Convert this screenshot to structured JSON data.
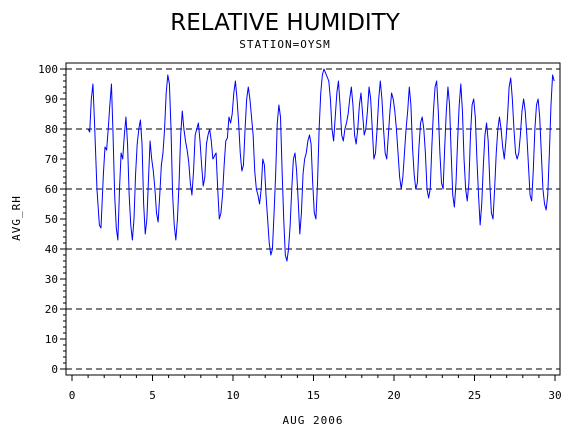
{
  "chart_data": {
    "type": "line",
    "title": "RELATIVE HUMIDITY",
    "subtitle": "STATION=OYSM",
    "xlabel": "AUG 2006",
    "ylabel": "AVG_RH",
    "xlim": [
      0,
      30
    ],
    "ylim": [
      0,
      100
    ],
    "xticks": [
      0,
      5,
      10,
      15,
      20,
      25,
      30
    ],
    "yticks": [
      0,
      10,
      20,
      30,
      40,
      50,
      60,
      70,
      80,
      90,
      100
    ],
    "reference_lines": [
      0,
      20,
      40,
      60,
      80,
      100
    ],
    "line_color": "#0000ff",
    "series": [
      {
        "values": [
          [
            1.0,
            80
          ],
          [
            1.1,
            79
          ],
          [
            1.2,
            90
          ],
          [
            1.3,
            95
          ],
          [
            1.4,
            82
          ],
          [
            1.55,
            60
          ],
          [
            1.7,
            48
          ],
          [
            1.8,
            47
          ],
          [
            1.95,
            65
          ],
          [
            2.05,
            74
          ],
          [
            2.15,
            73
          ],
          [
            2.25,
            80
          ],
          [
            2.35,
            88
          ],
          [
            2.45,
            95
          ],
          [
            2.55,
            78
          ],
          [
            2.65,
            58
          ],
          [
            2.75,
            47
          ],
          [
            2.85,
            43
          ],
          [
            2.95,
            60
          ],
          [
            3.05,
            72
          ],
          [
            3.15,
            70
          ],
          [
            3.25,
            78
          ],
          [
            3.35,
            84
          ],
          [
            3.45,
            75
          ],
          [
            3.55,
            58
          ],
          [
            3.65,
            48
          ],
          [
            3.75,
            43
          ],
          [
            3.85,
            50
          ],
          [
            3.95,
            65
          ],
          [
            4.05,
            75
          ],
          [
            4.15,
            80
          ],
          [
            4.25,
            83
          ],
          [
            4.35,
            75
          ],
          [
            4.45,
            55
          ],
          [
            4.55,
            45
          ],
          [
            4.65,
            50
          ],
          [
            4.75,
            63
          ],
          [
            4.85,
            76
          ],
          [
            4.95,
            70
          ],
          [
            5.05,
            66
          ],
          [
            5.15,
            60
          ],
          [
            5.25,
            52
          ],
          [
            5.35,
            49
          ],
          [
            5.45,
            58
          ],
          [
            5.55,
            68
          ],
          [
            5.65,
            72
          ],
          [
            5.75,
            80
          ],
          [
            5.85,
            92
          ],
          [
            5.95,
            98
          ],
          [
            6.05,
            95
          ],
          [
            6.15,
            80
          ],
          [
            6.25,
            58
          ],
          [
            6.35,
            48
          ],
          [
            6.45,
            43
          ],
          [
            6.55,
            50
          ],
          [
            6.65,
            62
          ],
          [
            6.75,
            78
          ],
          [
            6.85,
            86
          ],
          [
            6.95,
            80
          ],
          [
            7.05,
            76
          ],
          [
            7.15,
            73
          ],
          [
            7.25,
            69
          ],
          [
            7.35,
            62
          ],
          [
            7.45,
            58
          ],
          [
            7.55,
            66
          ],
          [
            7.65,
            78
          ],
          [
            7.75,
            80
          ],
          [
            7.85,
            82
          ],
          [
            7.95,
            76
          ],
          [
            8.05,
            68
          ],
          [
            8.15,
            61
          ],
          [
            8.25,
            64
          ],
          [
            8.35,
            75
          ],
          [
            8.45,
            78
          ],
          [
            8.55,
            80
          ],
          [
            8.65,
            76
          ],
          [
            8.75,
            70
          ],
          [
            8.95,
            72
          ],
          [
            9.05,
            60
          ],
          [
            9.15,
            50
          ],
          [
            9.25,
            52
          ],
          [
            9.35,
            58
          ],
          [
            9.45,
            68
          ],
          [
            9.55,
            76
          ],
          [
            9.65,
            77
          ],
          [
            9.75,
            84
          ],
          [
            9.85,
            82
          ],
          [
            9.95,
            85
          ],
          [
            10.05,
            92
          ],
          [
            10.15,
            96
          ],
          [
            10.25,
            90
          ],
          [
            10.35,
            82
          ],
          [
            10.45,
            72
          ],
          [
            10.55,
            66
          ],
          [
            10.65,
            68
          ],
          [
            10.75,
            80
          ],
          [
            10.85,
            90
          ],
          [
            10.95,
            94
          ],
          [
            11.05,
            90
          ],
          [
            11.15,
            84
          ],
          [
            11.25,
            78
          ],
          [
            11.35,
            66
          ],
          [
            11.45,
            60
          ],
          [
            11.55,
            58
          ],
          [
            11.65,
            55
          ],
          [
            11.75,
            60
          ],
          [
            11.85,
            70
          ],
          [
            11.95,
            68
          ],
          [
            12.05,
            58
          ],
          [
            12.15,
            50
          ],
          [
            12.25,
            42
          ],
          [
            12.35,
            38
          ],
          [
            12.45,
            40
          ],
          [
            12.55,
            52
          ],
          [
            12.65,
            65
          ],
          [
            12.75,
            82
          ],
          [
            12.85,
            88
          ],
          [
            12.95,
            84
          ],
          [
            13.05,
            66
          ],
          [
            13.15,
            50
          ],
          [
            13.25,
            38
          ],
          [
            13.35,
            36
          ],
          [
            13.45,
            40
          ],
          [
            13.55,
            48
          ],
          [
            13.65,
            60
          ],
          [
            13.75,
            70
          ],
          [
            13.85,
            72
          ],
          [
            13.95,
            66
          ],
          [
            14.05,
            56
          ],
          [
            14.15,
            45
          ],
          [
            14.25,
            52
          ],
          [
            14.35,
            65
          ],
          [
            14.45,
            70
          ],
          [
            14.55,
            72
          ],
          [
            14.65,
            76
          ],
          [
            14.75,
            78
          ],
          [
            14.85,
            75
          ],
          [
            14.95,
            62
          ],
          [
            15.05,
            52
          ],
          [
            15.15,
            50
          ],
          [
            15.25,
            62
          ],
          [
            15.35,
            80
          ],
          [
            15.45,
            92
          ],
          [
            15.55,
            98
          ],
          [
            15.65,
            100
          ],
          [
            15.8,
            98
          ],
          [
            15.95,
            96
          ],
          [
            16.05,
            90
          ],
          [
            16.15,
            80
          ],
          [
            16.25,
            76
          ],
          [
            16.35,
            84
          ],
          [
            16.45,
            92
          ],
          [
            16.55,
            96
          ],
          [
            16.65,
            88
          ],
          [
            16.75,
            78
          ],
          [
            16.85,
            76
          ],
          [
            16.95,
            80
          ],
          [
            17.05,
            82
          ],
          [
            17.15,
            85
          ],
          [
            17.25,
            90
          ],
          [
            17.35,
            94
          ],
          [
            17.45,
            88
          ],
          [
            17.55,
            78
          ],
          [
            17.65,
            75
          ],
          [
            17.75,
            80
          ],
          [
            17.85,
            88
          ],
          [
            17.95,
            92
          ],
          [
            18.05,
            85
          ],
          [
            18.15,
            78
          ],
          [
            18.25,
            80
          ],
          [
            18.35,
            86
          ],
          [
            18.45,
            94
          ],
          [
            18.55,
            90
          ],
          [
            18.65,
            80
          ],
          [
            18.75,
            70
          ],
          [
            18.85,
            72
          ],
          [
            18.95,
            80
          ],
          [
            19.05,
            90
          ],
          [
            19.15,
            96
          ],
          [
            19.25,
            90
          ],
          [
            19.35,
            80
          ],
          [
            19.45,
            72
          ],
          [
            19.55,
            70
          ],
          [
            19.65,
            78
          ],
          [
            19.75,
            86
          ],
          [
            19.85,
            92
          ],
          [
            19.95,
            90
          ],
          [
            20.05,
            86
          ],
          [
            20.15,
            80
          ],
          [
            20.25,
            72
          ],
          [
            20.35,
            64
          ],
          [
            20.45,
            60
          ],
          [
            20.55,
            64
          ],
          [
            20.65,
            72
          ],
          [
            20.75,
            80
          ],
          [
            20.85,
            86
          ],
          [
            20.95,
            94
          ],
          [
            21.05,
            88
          ],
          [
            21.15,
            74
          ],
          [
            21.25,
            65
          ],
          [
            21.35,
            60
          ],
          [
            21.45,
            62
          ],
          [
            21.55,
            74
          ],
          [
            21.65,
            82
          ],
          [
            21.75,
            84
          ],
          [
            21.85,
            80
          ],
          [
            21.95,
            72
          ],
          [
            22.05,
            60
          ],
          [
            22.15,
            57
          ],
          [
            22.25,
            60
          ],
          [
            22.35,
            74
          ],
          [
            22.45,
            86
          ],
          [
            22.55,
            94
          ],
          [
            22.65,
            96
          ],
          [
            22.75,
            86
          ],
          [
            22.85,
            72
          ],
          [
            22.95,
            62
          ],
          [
            23.05,
            60
          ],
          [
            23.15,
            74
          ],
          [
            23.25,
            86
          ],
          [
            23.35,
            94
          ],
          [
            23.45,
            88
          ],
          [
            23.55,
            72
          ],
          [
            23.65,
            58
          ],
          [
            23.75,
            54
          ],
          [
            23.85,
            62
          ],
          [
            23.95,
            76
          ],
          [
            24.05,
            88
          ],
          [
            24.15,
            95
          ],
          [
            24.25,
            86
          ],
          [
            24.35,
            70
          ],
          [
            24.45,
            60
          ],
          [
            24.55,
            56
          ],
          [
            24.65,
            62
          ],
          [
            24.75,
            78
          ],
          [
            24.85,
            88
          ],
          [
            24.95,
            90
          ],
          [
            25.05,
            84
          ],
          [
            25.15,
            70
          ],
          [
            25.25,
            58
          ],
          [
            25.35,
            48
          ],
          [
            25.45,
            55
          ],
          [
            25.55,
            68
          ],
          [
            25.65,
            78
          ],
          [
            25.75,
            82
          ],
          [
            25.85,
            76
          ],
          [
            25.95,
            62
          ],
          [
            26.05,
            52
          ],
          [
            26.15,
            50
          ],
          [
            26.25,
            60
          ],
          [
            26.35,
            72
          ],
          [
            26.45,
            80
          ],
          [
            26.55,
            84
          ],
          [
            26.65,
            80
          ],
          [
            26.75,
            74
          ],
          [
            26.85,
            70
          ],
          [
            26.95,
            76
          ],
          [
            27.05,
            84
          ],
          [
            27.15,
            94
          ],
          [
            27.25,
            97
          ],
          [
            27.35,
            90
          ],
          [
            27.45,
            80
          ],
          [
            27.55,
            72
          ],
          [
            27.65,
            70
          ],
          [
            27.75,
            72
          ],
          [
            27.85,
            78
          ],
          [
            27.95,
            86
          ],
          [
            28.05,
            90
          ],
          [
            28.15,
            86
          ],
          [
            28.25,
            78
          ],
          [
            28.35,
            68
          ],
          [
            28.45,
            58
          ],
          [
            28.55,
            56
          ],
          [
            28.65,
            66
          ],
          [
            28.75,
            80
          ],
          [
            28.85,
            88
          ],
          [
            28.95,
            90
          ],
          [
            29.05,
            84
          ],
          [
            29.15,
            72
          ],
          [
            29.25,
            60
          ],
          [
            29.35,
            55
          ],
          [
            29.45,
            53
          ],
          [
            29.55,
            58
          ],
          [
            29.65,
            72
          ],
          [
            29.75,
            88
          ],
          [
            29.85,
            98
          ],
          [
            29.95,
            96
          ]
        ]
      }
    ]
  }
}
